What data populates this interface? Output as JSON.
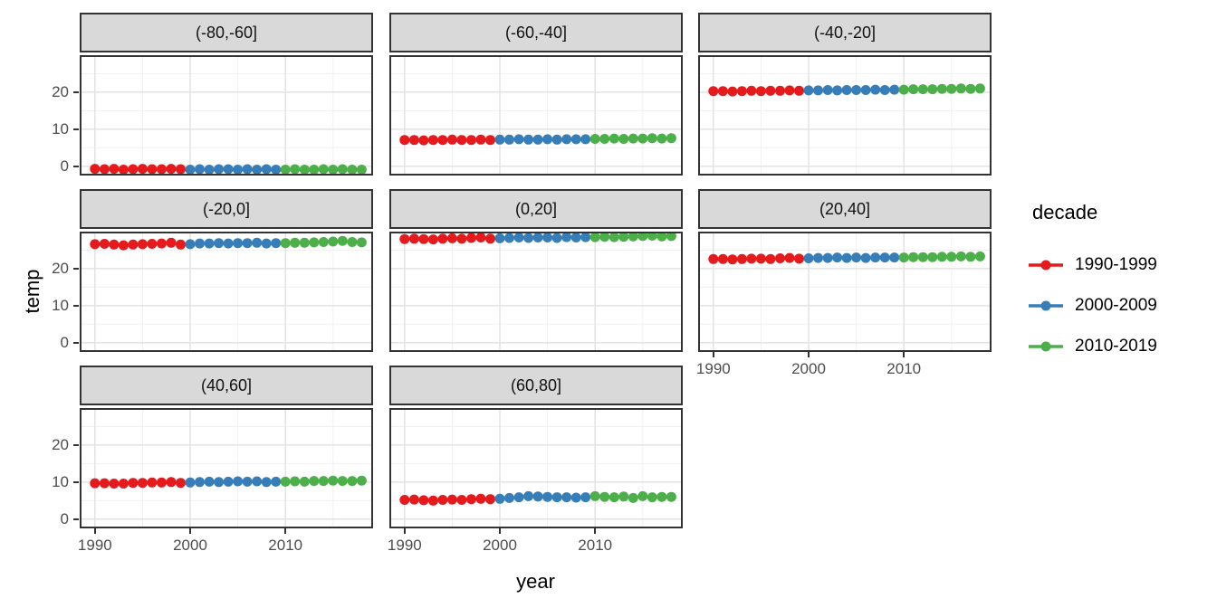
{
  "chart_data": {
    "type": "scatter",
    "title": "",
    "xlabel": "year",
    "ylabel": "temp",
    "legend_title": "decade",
    "legend_position": "right",
    "grid": true,
    "x_ticks": [
      1990,
      2000,
      2010
    ],
    "y_ticks": [
      0,
      10,
      20
    ],
    "x_minor_ticks": [
      1995,
      2005,
      2015
    ],
    "y_minor_ticks": [
      5,
      15,
      25
    ],
    "x_range": [
      1988.4,
      2019.2
    ],
    "y_range": [
      -2.5,
      30
    ],
    "colors": {
      "strip_bg": "#d9d9d9",
      "panel_border": "#333333",
      "grid_major": "#e3e3e3",
      "grid_minor": "#f0f0f0",
      "tick_text": "#4d4d4d"
    },
    "years": [
      1990,
      1991,
      1992,
      1993,
      1994,
      1995,
      1996,
      1997,
      1998,
      1999,
      2000,
      2001,
      2002,
      2003,
      2004,
      2005,
      2006,
      2007,
      2008,
      2009,
      2010,
      2011,
      2012,
      2013,
      2014,
      2015,
      2016,
      2017,
      2018
    ],
    "decades": [
      {
        "name": "1990-1999",
        "color": "#E41A1C",
        "start": 1990,
        "end": 1999
      },
      {
        "name": "2000-2009",
        "color": "#377EB8",
        "start": 2000,
        "end": 2009
      },
      {
        "name": "2010-2019",
        "color": "#4DAF4A",
        "start": 2010,
        "end": 2019
      }
    ],
    "facets": [
      {
        "label": "(-80,-60]",
        "values": [
          -0.7,
          -0.8,
          -0.7,
          -0.9,
          -0.8,
          -0.7,
          -0.8,
          -0.8,
          -0.7,
          -0.8,
          -0.9,
          -0.8,
          -0.9,
          -0.8,
          -0.8,
          -0.9,
          -0.8,
          -0.9,
          -0.8,
          -0.9,
          -0.9,
          -0.8,
          -0.9,
          -0.9,
          -0.8,
          -0.9,
          -0.8,
          -0.9,
          -0.9
        ]
      },
      {
        "label": "(-60,-40]",
        "values": [
          7.1,
          7.1,
          7.0,
          7.1,
          7.1,
          7.2,
          7.1,
          7.1,
          7.2,
          7.1,
          7.2,
          7.2,
          7.3,
          7.2,
          7.2,
          7.3,
          7.2,
          7.3,
          7.3,
          7.3,
          7.4,
          7.4,
          7.5,
          7.4,
          7.5,
          7.5,
          7.6,
          7.5,
          7.6
        ]
      },
      {
        "label": "(-40,-20]",
        "values": [
          20.3,
          20.3,
          20.2,
          20.3,
          20.4,
          20.3,
          20.4,
          20.4,
          20.5,
          20.4,
          20.5,
          20.5,
          20.6,
          20.5,
          20.6,
          20.6,
          20.6,
          20.7,
          20.6,
          20.7,
          20.7,
          20.8,
          20.8,
          20.8,
          20.9,
          20.9,
          21.0,
          20.9,
          21.0
        ]
      },
      {
        "label": "(-20,0]",
        "values": [
          26.6,
          26.7,
          26.5,
          26.3,
          26.5,
          26.6,
          26.7,
          26.8,
          27.0,
          26.5,
          26.6,
          26.8,
          26.8,
          26.9,
          26.8,
          26.9,
          26.9,
          27.0,
          26.8,
          26.9,
          26.9,
          27.0,
          27.0,
          27.1,
          27.2,
          27.3,
          27.5,
          27.2,
          27.1
        ]
      },
      {
        "label": "(0,20]",
        "values": [
          28.0,
          28.1,
          28.0,
          27.9,
          28.1,
          28.2,
          28.1,
          28.3,
          28.4,
          28.1,
          28.2,
          28.3,
          28.4,
          28.3,
          28.4,
          28.4,
          28.3,
          28.5,
          28.4,
          28.5,
          28.5,
          28.6,
          28.5,
          28.6,
          28.7,
          28.8,
          28.9,
          28.7,
          28.8
        ]
      },
      {
        "label": "(20,40]",
        "values": [
          22.6,
          22.6,
          22.5,
          22.6,
          22.7,
          22.7,
          22.6,
          22.8,
          22.9,
          22.7,
          22.8,
          22.9,
          22.9,
          23.0,
          22.9,
          23.0,
          22.9,
          23.0,
          23.0,
          23.0,
          23.0,
          23.1,
          23.1,
          23.1,
          23.2,
          23.2,
          23.3,
          23.2,
          23.3
        ]
      },
      {
        "label": "(40,60]",
        "values": [
          9.7,
          9.7,
          9.6,
          9.6,
          9.8,
          9.8,
          9.9,
          9.9,
          10.0,
          9.8,
          9.9,
          10.0,
          10.1,
          10.0,
          10.1,
          10.2,
          10.1,
          10.2,
          10.0,
          10.1,
          10.1,
          10.2,
          10.1,
          10.3,
          10.3,
          10.4,
          10.3,
          10.3,
          10.4
        ]
      },
      {
        "label": "(60,80]",
        "values": [
          5.2,
          5.3,
          5.1,
          5.0,
          5.2,
          5.3,
          5.2,
          5.4,
          5.5,
          5.4,
          5.5,
          5.7,
          5.9,
          6.2,
          6.1,
          6.0,
          5.9,
          5.9,
          5.8,
          5.9,
          6.2,
          6.0,
          5.9,
          6.1,
          5.7,
          6.2,
          5.9,
          6.0,
          6.0
        ]
      }
    ]
  }
}
